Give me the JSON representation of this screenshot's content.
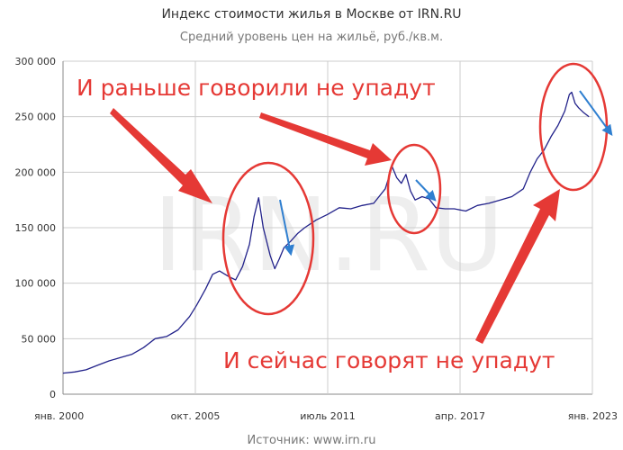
{
  "title": "Индекс стоимости жилья в Москве от IRN.RU",
  "subtitle": "Средний уровень цен на жильё, руб./кв.м.",
  "source": "Источник: www.irn.ru",
  "watermark": "IRN.RU",
  "annotations": {
    "top": "И раньше говорили не упадут",
    "bottom": "И сейчас говорят не упадут"
  },
  "colors": {
    "line": "#22228a",
    "annotation": "#e53935",
    "trend_arrow": "#2f7fd0",
    "grid": "#cccccc",
    "title": "#333333",
    "subtitle": "#777777"
  },
  "chart_data": {
    "type": "line",
    "title": "Индекс стоимости жилья в Москве от IRN.RU",
    "subtitle": "Средний уровень цен на жильё, руб./кв.м.",
    "x_start_year": 2000.0,
    "x_end_year": 2023.0,
    "ylim": [
      0,
      300000
    ],
    "y_ticks": [
      0,
      50000,
      100000,
      150000,
      200000,
      250000,
      300000
    ],
    "y_tick_labels": [
      "0",
      "50 000",
      "100 000",
      "150 000",
      "200 000",
      "250 000",
      "300 000"
    ],
    "x_ticks": [
      2000.0,
      2005.75,
      2011.5,
      2017.25,
      2023.0
    ],
    "x_tick_labels": [
      "янв. 2000",
      "окт. 2005",
      "июль 2011",
      "апр. 2017",
      "янв. 2023"
    ],
    "grid": "vertical at x ticks, horizontal at y ticks",
    "series": [
      {
        "x": [
          2000.0,
          2000.5,
          2001.0,
          2001.5,
          2002.0,
          2002.5,
          2003.0,
          2003.5,
          2004.0,
          2004.5,
          2005.0,
          2005.5,
          2005.8,
          2006.2,
          2006.5,
          2006.8,
          2007.2,
          2007.5,
          2007.8,
          2008.1,
          2008.3,
          2008.5,
          2008.7,
          2009.0,
          2009.2,
          2009.4,
          2009.6,
          2009.9,
          2010.2,
          2010.5,
          2011.0,
          2011.5,
          2012.0,
          2012.5,
          2013.0,
          2013.5,
          2014.0,
          2014.3,
          2014.5,
          2014.7,
          2014.9,
          2015.1,
          2015.3,
          2015.6,
          2015.9,
          2016.2,
          2016.6,
          2017.0,
          2017.5,
          2018.0,
          2018.5,
          2019.0,
          2019.5,
          2020.0,
          2020.3,
          2020.6,
          2020.9,
          2021.2,
          2021.5,
          2021.8,
          2022.0,
          2022.1,
          2022.25,
          2022.4,
          2022.6,
          2022.85
        ],
        "y": [
          19000,
          20000,
          22000,
          26000,
          30000,
          33000,
          36000,
          42000,
          50000,
          52000,
          58000,
          70000,
          80000,
          95000,
          108000,
          111000,
          106000,
          103000,
          115000,
          135000,
          160000,
          177000,
          150000,
          125000,
          113000,
          122000,
          132000,
          138000,
          145000,
          150000,
          157000,
          162000,
          168000,
          167000,
          170000,
          172000,
          185000,
          205000,
          195000,
          190000,
          198000,
          183000,
          175000,
          178000,
          176000,
          168000,
          167000,
          167000,
          165000,
          170000,
          172000,
          175000,
          178000,
          185000,
          200000,
          212000,
          220000,
          232000,
          242000,
          255000,
          270000,
          272000,
          262000,
          258000,
          254000,
          250000
        ]
      }
    ]
  }
}
